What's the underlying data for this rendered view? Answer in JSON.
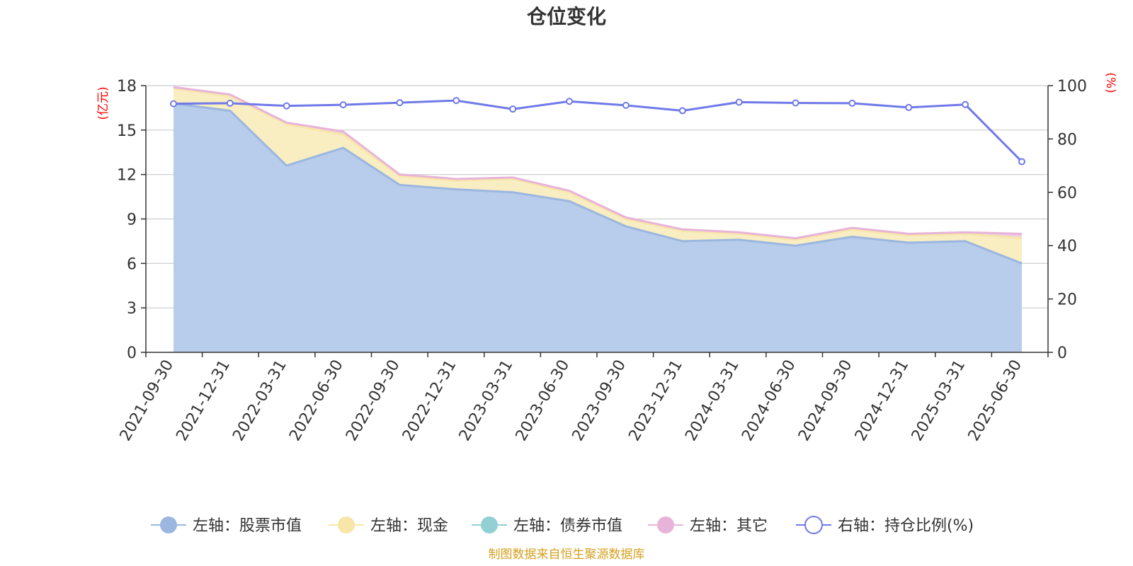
{
  "chart_data": {
    "type": "area",
    "title": "仓位变化",
    "y_left_unit": "(亿元)",
    "y_right_unit": "(%)",
    "ylim_left": [
      0,
      18
    ],
    "yticks_left": [
      0,
      3,
      6,
      9,
      12,
      15,
      18
    ],
    "ylim_right": [
      0,
      100
    ],
    "yticks_right": [
      0,
      20,
      40,
      60,
      80,
      100
    ],
    "categories": [
      "2021-09-30",
      "2021-12-31",
      "2022-03-31",
      "2022-06-30",
      "2022-09-30",
      "2022-12-31",
      "2023-03-31",
      "2023-06-30",
      "2023-09-30",
      "2023-12-31",
      "2024-03-31",
      "2024-06-30",
      "2024-09-30",
      "2024-12-31",
      "2025-03-31",
      "2025-06-30"
    ],
    "stacked_series": [
      {
        "name": "左轴：股票市值",
        "axis": "left",
        "color": "#9bb7e0",
        "fill": "#b8cceb",
        "values": [
          16.8,
          16.3,
          12.6,
          13.8,
          11.3,
          11.0,
          10.8,
          10.2,
          8.5,
          7.5,
          7.6,
          7.2,
          7.8,
          7.4,
          7.5,
          6.0
        ]
      },
      {
        "name": "左轴：现金",
        "axis": "left",
        "color": "#f7e6a8",
        "fill": "#f9edc2",
        "values": [
          1.0,
          1.0,
          2.8,
          0.9,
          0.6,
          0.6,
          0.9,
          0.6,
          0.5,
          0.7,
          0.4,
          0.4,
          0.5,
          0.5,
          0.5,
          1.7
        ]
      },
      {
        "name": "左轴：债券市值",
        "axis": "left",
        "color": "#93d0d3",
        "fill": "#b4e0e2",
        "values": [
          0,
          0,
          0,
          0,
          0,
          0,
          0,
          0,
          0,
          0,
          0,
          0,
          0,
          0,
          0,
          0
        ]
      },
      {
        "name": "左轴：其它",
        "axis": "left",
        "color": "#e8b3d8",
        "fill": "#f0cce4",
        "values": [
          0.1,
          0.1,
          0.1,
          0.2,
          0.1,
          0.1,
          0.1,
          0.1,
          0.1,
          0.1,
          0.1,
          0.1,
          0.1,
          0.1,
          0.1,
          0.3
        ]
      }
    ],
    "line_series": {
      "name": "右轴：持仓比例(%)",
      "axis": "right",
      "color": "#7079e8",
      "values": [
        93.2,
        93.4,
        92.4,
        92.8,
        93.6,
        94.4,
        91.2,
        94.1,
        92.6,
        90.6,
        93.8,
        93.5,
        93.4,
        91.8,
        92.9,
        71.5
      ]
    },
    "grid": true,
    "legend_position": "bottom"
  },
  "footer": {
    "source": "制图数据来自恒生聚源数据库"
  },
  "colors": {
    "title": "#333333",
    "axis_unit": "#ff0000",
    "source": "#d4a020",
    "grid": "#cccccc"
  }
}
